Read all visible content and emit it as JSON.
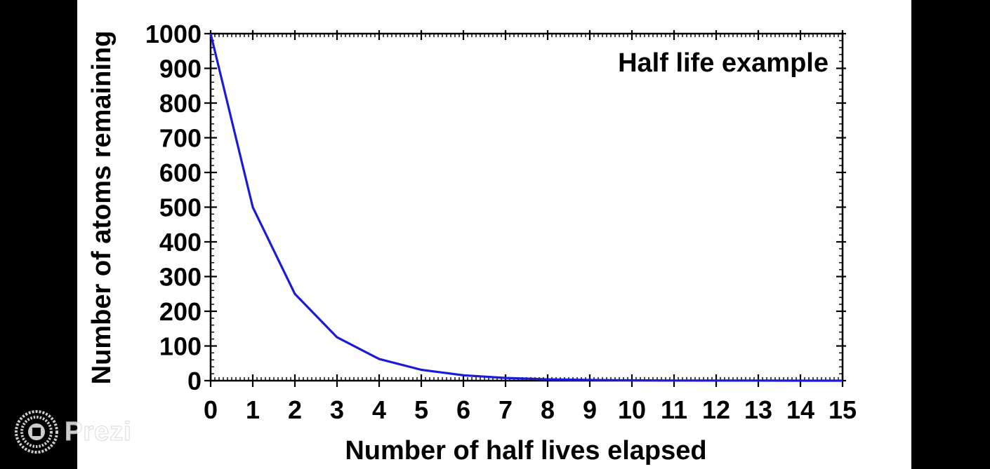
{
  "chart_data": {
    "type": "line",
    "title": "Half life example",
    "xlabel": "Number of half lives elapsed",
    "ylabel": "Number of atoms remaining",
    "xlim": [
      0,
      15
    ],
    "ylim": [
      0,
      1000
    ],
    "xticks": [
      "0",
      "1",
      "2",
      "3",
      "4",
      "5",
      "6",
      "7",
      "8",
      "9",
      "10",
      "11",
      "12",
      "13",
      "14",
      "15"
    ],
    "yticks": [
      "0",
      "100",
      "200",
      "300",
      "400",
      "500",
      "600",
      "700",
      "800",
      "900",
      "1000"
    ],
    "x": [
      0,
      1,
      2,
      3,
      4,
      5,
      6,
      7,
      8,
      9,
      10,
      11,
      12,
      13,
      14,
      15
    ],
    "series": [
      {
        "values": [
          1000,
          500,
          250,
          125,
          62.5,
          31.25,
          15.6,
          7.8,
          3.9,
          2.0,
          1.0,
          0.5,
          0.24,
          0.12,
          0.06,
          0.03
        ],
        "color": "#1a1ad8"
      }
    ],
    "grid": false,
    "legend": "none"
  },
  "watermark": {
    "text": "Prezi",
    "icon": "prezi-logo-icon"
  }
}
